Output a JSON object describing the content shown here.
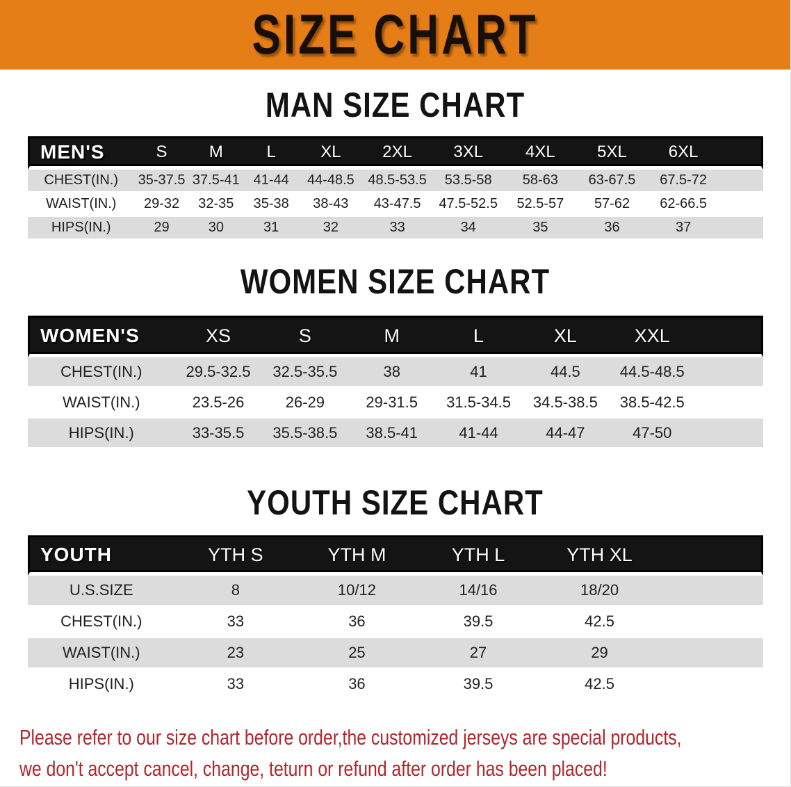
{
  "banner": {
    "title": "SIZE CHART"
  },
  "colors": {
    "banner_bg": "#E67E17",
    "header_bar": "#141414",
    "stripe": "#DCDCDC",
    "disclaimer_text": "#B2252B"
  },
  "charts": [
    {
      "heading": "MAN SIZE CHART",
      "label_header": "MEN'S",
      "columns": [
        "S",
        "M",
        "L",
        "XL",
        "2XL",
        "3XL",
        "4XL",
        "5XL",
        "6XL"
      ],
      "rows": [
        {
          "label": "CHEST(IN.)",
          "values": [
            "35-37.5",
            "37.5-41",
            "41-44",
            "44-48.5",
            "48.5-53.5",
            "53.5-58",
            "58-63",
            "63-67.5",
            "67.5-72"
          ]
        },
        {
          "label": "WAIST(IN.)",
          "values": [
            "29-32",
            "32-35",
            "35-38",
            "38-43",
            "43-47.5",
            "47.5-52.5",
            "52.5-57",
            "57-62",
            "62-66.5"
          ]
        },
        {
          "label": "HIPS(IN.)",
          "values": [
            "29",
            "30",
            "31",
            "32",
            "33",
            "34",
            "35",
            "36",
            "37"
          ]
        }
      ]
    },
    {
      "heading": "WOMEN SIZE CHART",
      "label_header": "WOMEN'S",
      "columns": [
        "XS",
        "S",
        "M",
        "L",
        "XL",
        "XXL"
      ],
      "rows": [
        {
          "label": "CHEST(IN.)",
          "values": [
            "29.5-32.5",
            "32.5-35.5",
            "38",
            "41",
            "44.5",
            "44.5-48.5"
          ]
        },
        {
          "label": "WAIST(IN.)",
          "values": [
            "23.5-26",
            "26-29",
            "29-31.5",
            "31.5-34.5",
            "34.5-38.5",
            "38.5-42.5"
          ]
        },
        {
          "label": "HIPS(IN.)",
          "values": [
            "33-35.5",
            "35.5-38.5",
            "38.5-41",
            "41-44",
            "44-47",
            "47-50"
          ]
        }
      ]
    },
    {
      "heading": "YOUTH SIZE CHART",
      "label_header": "YOUTH",
      "columns": [
        "YTH S",
        "YTH M",
        "YTH L",
        "YTH XL"
      ],
      "rows": [
        {
          "label": "U.S.SIZE",
          "values": [
            "8",
            "10/12",
            "14/16",
            "18/20"
          ]
        },
        {
          "label": "CHEST(IN.)",
          "values": [
            "33",
            "36",
            "39.5",
            "42.5"
          ]
        },
        {
          "label": "WAIST(IN.)",
          "values": [
            "23",
            "25",
            "27",
            "29"
          ]
        },
        {
          "label": "HIPS(IN.)",
          "values": [
            "33",
            "36",
            "39.5",
            "42.5"
          ]
        }
      ]
    }
  ],
  "disclaimer": {
    "line1": "Please refer to our size chart before order,the customized jerseys are special products,",
    "line2": "we don't accept cancel, change, teturn or refund after order has been placed!"
  }
}
